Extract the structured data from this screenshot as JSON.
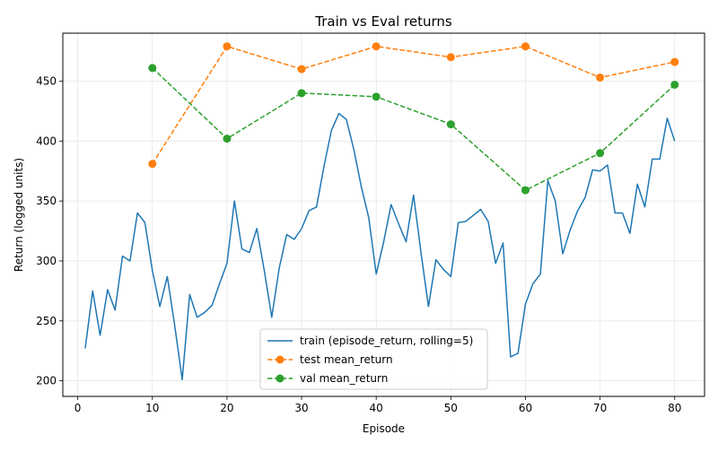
{
  "chart_data": {
    "type": "line",
    "title": "Train vs Eval returns",
    "xlabel": "Episode",
    "ylabel": "Return (logged units)",
    "xlim": [
      -2,
      84
    ],
    "ylim": [
      187,
      490
    ],
    "xticks": [
      0,
      10,
      20,
      30,
      40,
      50,
      60,
      70,
      80
    ],
    "yticks": [
      200,
      250,
      300,
      350,
      400,
      450
    ],
    "grid": true,
    "legend_position": "lower-center",
    "series": [
      {
        "name": "train (episode_return, rolling=5)",
        "color": "#1f77b4",
        "style": "solid",
        "marker": "none",
        "x": [
          1,
          2,
          3,
          4,
          5,
          6,
          7,
          8,
          9,
          10,
          11,
          12,
          13,
          14,
          15,
          16,
          17,
          18,
          19,
          20,
          21,
          22,
          23,
          24,
          25,
          26,
          27,
          28,
          29,
          30,
          31,
          32,
          33,
          34,
          35,
          36,
          37,
          38,
          39,
          40,
          41,
          42,
          43,
          44,
          45,
          46,
          47,
          48,
          49,
          50,
          51,
          52,
          53,
          54,
          55,
          56,
          57,
          58,
          59,
          60,
          61,
          62,
          63,
          64,
          65,
          66,
          67,
          68,
          69,
          70,
          71,
          72,
          73,
          74,
          75,
          76,
          77,
          78,
          79,
          80
        ],
        "y": [
          227,
          275,
          238,
          276,
          259,
          304,
          300,
          340,
          332,
          292,
          262,
          287,
          246,
          201,
          272,
          253,
          257,
          263,
          281,
          298,
          350,
          310,
          307,
          327,
          292,
          253,
          294,
          322,
          318,
          327,
          342,
          345,
          379,
          409,
          423,
          418,
          393,
          362,
          336,
          289,
          316,
          347,
          331,
          316,
          355,
          307,
          262,
          301,
          293,
          287,
          332,
          333,
          338,
          343,
          333,
          298,
          315,
          220,
          223,
          264,
          281,
          289,
          367,
          350,
          306,
          326,
          342,
          353,
          376,
          375,
          380,
          340,
          340,
          323,
          364,
          345,
          385,
          385,
          419,
          400
        ]
      },
      {
        "name": "test mean_return",
        "color": "#ff7f0e",
        "style": "dashed",
        "marker": "circle",
        "x": [
          10,
          20,
          30,
          40,
          50,
          60,
          70,
          80
        ],
        "y": [
          381,
          479,
          460,
          479,
          470,
          479,
          453,
          466
        ]
      },
      {
        "name": "val mean_return",
        "color": "#2ca02c",
        "style": "dashed",
        "marker": "circle",
        "x": [
          10,
          20,
          30,
          40,
          50,
          60,
          70,
          80
        ],
        "y": [
          461,
          402,
          440,
          437,
          414,
          359,
          390,
          447
        ]
      }
    ]
  }
}
